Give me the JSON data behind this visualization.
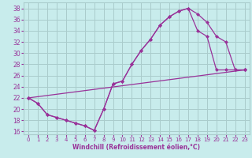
{
  "xlabel": "Windchill (Refroidissement éolien,°C)",
  "bg_color": "#c8ecec",
  "line_color": "#993399",
  "grid_color": "#aacccc",
  "xlim": [
    -0.5,
    23.5
  ],
  "ylim": [
    15.5,
    39
  ],
  "xticks": [
    0,
    1,
    2,
    3,
    4,
    5,
    6,
    7,
    8,
    9,
    10,
    11,
    12,
    13,
    14,
    15,
    16,
    17,
    18,
    19,
    20,
    21,
    22,
    23
  ],
  "yticks": [
    16,
    18,
    20,
    22,
    24,
    26,
    28,
    30,
    32,
    34,
    36,
    38
  ],
  "line1_x": [
    0,
    1,
    2,
    3,
    4,
    5,
    6,
    7,
    8,
    9,
    10,
    11,
    12,
    13,
    14,
    15,
    16,
    17,
    18,
    19,
    20,
    21,
    22,
    23
  ],
  "line1_y": [
    22,
    21,
    19,
    18.5,
    18,
    17.5,
    17,
    16.2,
    20,
    24.5,
    25,
    28,
    30.5,
    32.5,
    35,
    36.5,
    37.5,
    38,
    34,
    33,
    27,
    27,
    27,
    27
  ],
  "line2_x": [
    0,
    1,
    2,
    3,
    4,
    5,
    6,
    7,
    8,
    9,
    10,
    11,
    12,
    13,
    14,
    15,
    16,
    17,
    18,
    19,
    20,
    21,
    22,
    23
  ],
  "line2_y": [
    22,
    21,
    19,
    18.5,
    18,
    17.5,
    17,
    16.2,
    20,
    24.5,
    25,
    28,
    30.5,
    32.5,
    35,
    36.5,
    37.5,
    38,
    37,
    35.5,
    33,
    32,
    27,
    27
  ],
  "line3_x": [
    0,
    23
  ],
  "line3_y": [
    22,
    27
  ]
}
